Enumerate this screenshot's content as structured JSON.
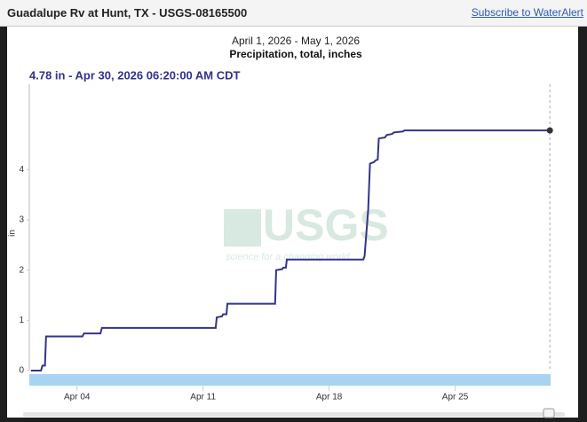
{
  "header": {
    "title": "Guadalupe Rv at Hunt, TX - USGS-08165500",
    "link": "Subscribe to WaterAlert"
  },
  "chart_data": {
    "type": "line",
    "title": "April 1, 2026 - May 1, 2026",
    "subtitle": "Precipitation, total, inches",
    "annotation": "4.78 in - Apr 30, 2026 06:20:00 AM CDT",
    "y_label": "in",
    "watermark": {
      "logo": "USGS",
      "tagline": "science for a changing world"
    },
    "color": "#34348a",
    "x": [
      1.44,
      2.0,
      2.08,
      2.22,
      2.28,
      4.3,
      4.39,
      5.3,
      5.38,
      11.7,
      11.76,
      12.05,
      12.11,
      12.3,
      12.35,
      15.0,
      15.06,
      15.4,
      15.45,
      15.6,
      15.65,
      19.9,
      19.97,
      20.17,
      20.27,
      20.5,
      20.56,
      20.7,
      20.76,
      21.1,
      21.2,
      21.5,
      21.59,
      22.1,
      22.18,
      30.26
    ],
    "values": [
      0,
      0,
      0.1,
      0.1,
      0.68,
      0.68,
      0.74,
      0.74,
      0.85,
      0.85,
      1.06,
      1.08,
      1.12,
      1.12,
      1.33,
      1.33,
      2.0,
      2.02,
      2.05,
      2.05,
      2.21,
      2.21,
      2.28,
      3.2,
      4.12,
      4.15,
      4.18,
      4.2,
      4.62,
      4.64,
      4.69,
      4.71,
      4.74,
      4.76,
      4.78,
      4.78
    ],
    "xlim": [
      1.35,
      30.3
    ],
    "xticks": [
      {
        "value": 4,
        "label": "Apr 04"
      },
      {
        "value": 11,
        "label": "Apr 11"
      },
      {
        "value": 18,
        "label": "Apr 18"
      },
      {
        "value": 25,
        "label": "Apr 25"
      }
    ],
    "ylim": [
      0,
      5.7
    ],
    "yticks": [
      0,
      1,
      2,
      3,
      4
    ],
    "grid": false
  }
}
